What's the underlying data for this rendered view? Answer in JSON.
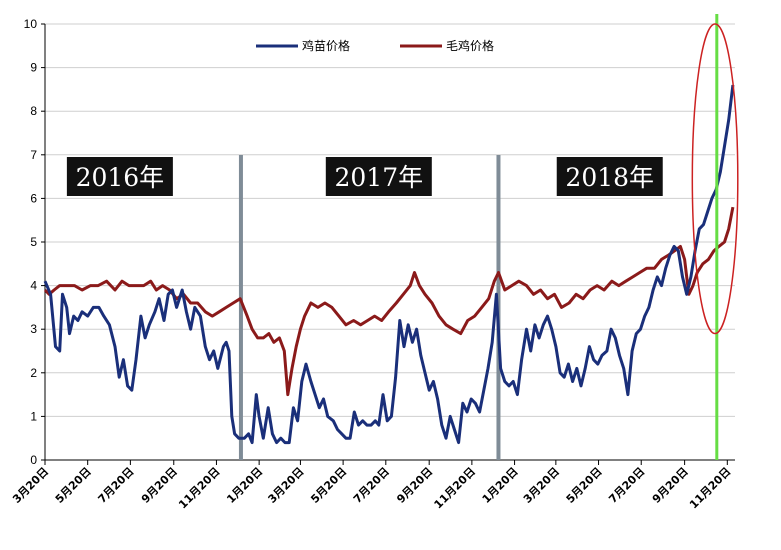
{
  "chart_data": {
    "type": "line",
    "title": "",
    "xlabel": "",
    "ylabel": "",
    "ylim": [
      0,
      10
    ],
    "yticks": [
      "0",
      "1",
      "2",
      "3",
      "4",
      "5",
      "6",
      "7",
      "8",
      "9",
      "10"
    ],
    "x_tick_labels": [
      "3月20日",
      "5月20日",
      "7月20日",
      "9月20日",
      "11月20日",
      "1月20日",
      "3月20日",
      "5月20日",
      "7月20日",
      "9月20日",
      "11月20日",
      "1月20日",
      "3月20日",
      "5月20日",
      "7月20日",
      "9月20日",
      "11月20日"
    ],
    "x_tick_dates": [
      "2016-03-20",
      "2016-05-20",
      "2016-07-20",
      "2016-09-20",
      "2016-11-20",
      "2017-01-20",
      "2017-03-20",
      "2017-05-20",
      "2017-07-20",
      "2017-09-20",
      "2017-11-20",
      "2018-01-20",
      "2018-03-20",
      "2018-05-20",
      "2018-07-20",
      "2018-09-20",
      "2018-11-20"
    ],
    "grid": "horizontal",
    "legend_position": "top-center",
    "year_labels": [
      {
        "text": "2016年",
        "date": "2016-07-05"
      },
      {
        "text": "2017年",
        "date": "2017-07-10"
      },
      {
        "text": "2018年",
        "date": "2018-06-05"
      }
    ],
    "year_dividers": [
      "2016-12-25",
      "2017-12-28"
    ],
    "highlight_line": {
      "date": "2018-11-05",
      "color": "#66dd44"
    },
    "highlight_ellipse": {
      "date_range": [
        "2018-10-01",
        "2018-12-05"
      ],
      "y_range": [
        2.9,
        10
      ],
      "color": "#cc2222"
    },
    "series": [
      {
        "name": "鸡苗价格",
        "color": "#1a2f7a",
        "points": [
          [
            "2016-03-20",
            4.1
          ],
          [
            "2016-03-28",
            3.8
          ],
          [
            "2016-04-04",
            2.6
          ],
          [
            "2016-04-10",
            2.5
          ],
          [
            "2016-04-14",
            3.8
          ],
          [
            "2016-04-20",
            3.5
          ],
          [
            "2016-04-24",
            2.9
          ],
          [
            "2016-04-30",
            3.3
          ],
          [
            "2016-05-06",
            3.2
          ],
          [
            "2016-05-12",
            3.4
          ],
          [
            "2016-05-20",
            3.3
          ],
          [
            "2016-05-28",
            3.5
          ],
          [
            "2016-06-05",
            3.5
          ],
          [
            "2016-06-12",
            3.3
          ],
          [
            "2016-06-20",
            3.1
          ],
          [
            "2016-06-28",
            2.6
          ],
          [
            "2016-07-04",
            1.9
          ],
          [
            "2016-07-10",
            2.3
          ],
          [
            "2016-07-16",
            1.7
          ],
          [
            "2016-07-22",
            1.6
          ],
          [
            "2016-07-28",
            2.3
          ],
          [
            "2016-08-04",
            3.3
          ],
          [
            "2016-08-10",
            2.8
          ],
          [
            "2016-08-16",
            3.1
          ],
          [
            "2016-08-24",
            3.4
          ],
          [
            "2016-08-30",
            3.7
          ],
          [
            "2016-09-06",
            3.2
          ],
          [
            "2016-09-12",
            3.8
          ],
          [
            "2016-09-18",
            3.9
          ],
          [
            "2016-09-24",
            3.5
          ],
          [
            "2016-10-02",
            3.9
          ],
          [
            "2016-10-08",
            3.4
          ],
          [
            "2016-10-14",
            3.0
          ],
          [
            "2016-10-20",
            3.5
          ],
          [
            "2016-10-28",
            3.3
          ],
          [
            "2016-11-04",
            2.6
          ],
          [
            "2016-11-10",
            2.3
          ],
          [
            "2016-11-16",
            2.5
          ],
          [
            "2016-11-22",
            2.1
          ],
          [
            "2016-11-30",
            2.6
          ],
          [
            "2016-12-04",
            2.7
          ],
          [
            "2016-12-08",
            2.5
          ],
          [
            "2016-12-12",
            1.0
          ],
          [
            "2016-12-16",
            0.6
          ],
          [
            "2016-12-22",
            0.5
          ],
          [
            "2016-12-30",
            0.5
          ],
          [
            "2017-01-05",
            0.6
          ],
          [
            "2017-01-10",
            0.4
          ],
          [
            "2017-01-16",
            1.5
          ],
          [
            "2017-01-20",
            1.0
          ],
          [
            "2017-01-26",
            0.5
          ],
          [
            "2017-02-02",
            1.2
          ],
          [
            "2017-02-08",
            0.6
          ],
          [
            "2017-02-14",
            0.4
          ],
          [
            "2017-02-20",
            0.5
          ],
          [
            "2017-02-26",
            0.4
          ],
          [
            "2017-03-04",
            0.4
          ],
          [
            "2017-03-10",
            1.2
          ],
          [
            "2017-03-16",
            0.9
          ],
          [
            "2017-03-22",
            1.8
          ],
          [
            "2017-03-28",
            2.2
          ],
          [
            "2017-04-04",
            1.8
          ],
          [
            "2017-04-10",
            1.5
          ],
          [
            "2017-04-16",
            1.2
          ],
          [
            "2017-04-22",
            1.4
          ],
          [
            "2017-04-28",
            1.0
          ],
          [
            "2017-05-06",
            0.9
          ],
          [
            "2017-05-12",
            0.7
          ],
          [
            "2017-05-18",
            0.6
          ],
          [
            "2017-05-24",
            0.5
          ],
          [
            "2017-05-30",
            0.5
          ],
          [
            "2017-06-05",
            1.1
          ],
          [
            "2017-06-11",
            0.8
          ],
          [
            "2017-06-17",
            0.9
          ],
          [
            "2017-06-23",
            0.8
          ],
          [
            "2017-06-29",
            0.8
          ],
          [
            "2017-07-05",
            0.9
          ],
          [
            "2017-07-10",
            0.8
          ],
          [
            "2017-07-16",
            1.5
          ],
          [
            "2017-07-22",
            0.9
          ],
          [
            "2017-07-28",
            1.0
          ],
          [
            "2017-08-03",
            1.9
          ],
          [
            "2017-08-09",
            3.2
          ],
          [
            "2017-08-15",
            2.6
          ],
          [
            "2017-08-21",
            3.1
          ],
          [
            "2017-08-27",
            2.7
          ],
          [
            "2017-09-02",
            3.0
          ],
          [
            "2017-09-08",
            2.4
          ],
          [
            "2017-09-14",
            2.0
          ],
          [
            "2017-09-20",
            1.6
          ],
          [
            "2017-09-26",
            1.8
          ],
          [
            "2017-10-02",
            1.4
          ],
          [
            "2017-10-08",
            0.8
          ],
          [
            "2017-10-14",
            0.5
          ],
          [
            "2017-10-20",
            1.0
          ],
          [
            "2017-10-26",
            0.7
          ],
          [
            "2017-11-01",
            0.4
          ],
          [
            "2017-11-07",
            1.3
          ],
          [
            "2017-11-13",
            1.1
          ],
          [
            "2017-11-19",
            1.4
          ],
          [
            "2017-11-25",
            1.3
          ],
          [
            "2017-12-01",
            1.1
          ],
          [
            "2017-12-07",
            1.6
          ],
          [
            "2017-12-13",
            2.1
          ],
          [
            "2017-12-19",
            2.7
          ],
          [
            "2017-12-25",
            3.8
          ],
          [
            "2017-12-31",
            2.1
          ],
          [
            "2018-01-06",
            1.8
          ],
          [
            "2018-01-12",
            1.7
          ],
          [
            "2018-01-18",
            1.8
          ],
          [
            "2018-01-24",
            1.5
          ],
          [
            "2018-01-30",
            2.3
          ],
          [
            "2018-02-06",
            3.0
          ],
          [
            "2018-02-12",
            2.5
          ],
          [
            "2018-02-18",
            3.1
          ],
          [
            "2018-02-24",
            2.8
          ],
          [
            "2018-03-02",
            3.1
          ],
          [
            "2018-03-08",
            3.3
          ],
          [
            "2018-03-14",
            3.0
          ],
          [
            "2018-03-20",
            2.6
          ],
          [
            "2018-03-26",
            2.0
          ],
          [
            "2018-04-01",
            1.9
          ],
          [
            "2018-04-07",
            2.2
          ],
          [
            "2018-04-13",
            1.8
          ],
          [
            "2018-04-19",
            2.1
          ],
          [
            "2018-04-25",
            1.7
          ],
          [
            "2018-05-01",
            2.1
          ],
          [
            "2018-05-07",
            2.6
          ],
          [
            "2018-05-13",
            2.3
          ],
          [
            "2018-05-19",
            2.2
          ],
          [
            "2018-05-25",
            2.4
          ],
          [
            "2018-06-01",
            2.5
          ],
          [
            "2018-06-07",
            3.0
          ],
          [
            "2018-06-13",
            2.8
          ],
          [
            "2018-06-19",
            2.4
          ],
          [
            "2018-06-25",
            2.1
          ],
          [
            "2018-07-01",
            1.5
          ],
          [
            "2018-07-07",
            2.5
          ],
          [
            "2018-07-13",
            2.9
          ],
          [
            "2018-07-19",
            3.0
          ],
          [
            "2018-07-25",
            3.3
          ],
          [
            "2018-07-31",
            3.5
          ],
          [
            "2018-08-06",
            3.9
          ],
          [
            "2018-08-12",
            4.2
          ],
          [
            "2018-08-18",
            4.0
          ],
          [
            "2018-08-24",
            4.4
          ],
          [
            "2018-08-30",
            4.7
          ],
          [
            "2018-09-05",
            4.9
          ],
          [
            "2018-09-11",
            4.8
          ],
          [
            "2018-09-17",
            4.2
          ],
          [
            "2018-09-23",
            3.8
          ],
          [
            "2018-09-29",
            4.2
          ],
          [
            "2018-10-05",
            4.8
          ],
          [
            "2018-10-11",
            5.3
          ],
          [
            "2018-10-17",
            5.4
          ],
          [
            "2018-10-23",
            5.7
          ],
          [
            "2018-10-29",
            6.0
          ],
          [
            "2018-11-04",
            6.2
          ],
          [
            "2018-11-10",
            6.6
          ],
          [
            "2018-11-16",
            7.2
          ],
          [
            "2018-11-22",
            7.8
          ],
          [
            "2018-11-28",
            8.6
          ]
        ]
      },
      {
        "name": "毛鸡价格",
        "color": "#8b1a1a",
        "points": [
          [
            "2016-03-20",
            3.9
          ],
          [
            "2016-03-26",
            3.8
          ],
          [
            "2016-04-02",
            3.9
          ],
          [
            "2016-04-10",
            4.0
          ],
          [
            "2016-04-20",
            4.0
          ],
          [
            "2016-05-01",
            4.0
          ],
          [
            "2016-05-12",
            3.9
          ],
          [
            "2016-05-24",
            4.0
          ],
          [
            "2016-06-04",
            4.0
          ],
          [
            "2016-06-16",
            4.1
          ],
          [
            "2016-06-28",
            3.9
          ],
          [
            "2016-07-08",
            4.1
          ],
          [
            "2016-07-18",
            4.0
          ],
          [
            "2016-07-28",
            4.0
          ],
          [
            "2016-08-08",
            4.0
          ],
          [
            "2016-08-18",
            4.1
          ],
          [
            "2016-08-26",
            3.9
          ],
          [
            "2016-09-04",
            4.0
          ],
          [
            "2016-09-14",
            3.9
          ],
          [
            "2016-09-24",
            3.7
          ],
          [
            "2016-10-04",
            3.8
          ],
          [
            "2016-10-14",
            3.6
          ],
          [
            "2016-10-24",
            3.6
          ],
          [
            "2016-11-04",
            3.4
          ],
          [
            "2016-11-14",
            3.3
          ],
          [
            "2016-11-24",
            3.4
          ],
          [
            "2016-12-04",
            3.5
          ],
          [
            "2016-12-14",
            3.6
          ],
          [
            "2016-12-24",
            3.7
          ],
          [
            "2017-01-03",
            3.3
          ],
          [
            "2017-01-10",
            3.0
          ],
          [
            "2017-01-18",
            2.8
          ],
          [
            "2017-01-26",
            2.8
          ],
          [
            "2017-02-03",
            2.9
          ],
          [
            "2017-02-10",
            2.7
          ],
          [
            "2017-02-18",
            2.8
          ],
          [
            "2017-02-25",
            2.5
          ],
          [
            "2017-03-02",
            1.5
          ],
          [
            "2017-03-08",
            2.1
          ],
          [
            "2017-03-14",
            2.6
          ],
          [
            "2017-03-20",
            3.0
          ],
          [
            "2017-03-26",
            3.3
          ],
          [
            "2017-04-04",
            3.6
          ],
          [
            "2017-04-14",
            3.5
          ],
          [
            "2017-04-24",
            3.6
          ],
          [
            "2017-05-04",
            3.5
          ],
          [
            "2017-05-14",
            3.3
          ],
          [
            "2017-05-24",
            3.1
          ],
          [
            "2017-06-04",
            3.2
          ],
          [
            "2017-06-14",
            3.1
          ],
          [
            "2017-06-24",
            3.2
          ],
          [
            "2017-07-04",
            3.3
          ],
          [
            "2017-07-14",
            3.2
          ],
          [
            "2017-07-24",
            3.4
          ],
          [
            "2017-08-04",
            3.6
          ],
          [
            "2017-08-14",
            3.8
          ],
          [
            "2017-08-24",
            4.0
          ],
          [
            "2017-08-30",
            4.3
          ],
          [
            "2017-09-06",
            4.0
          ],
          [
            "2017-09-14",
            3.8
          ],
          [
            "2017-09-24",
            3.6
          ],
          [
            "2017-10-04",
            3.3
          ],
          [
            "2017-10-14",
            3.1
          ],
          [
            "2017-10-24",
            3.0
          ],
          [
            "2017-11-04",
            2.9
          ],
          [
            "2017-11-14",
            3.2
          ],
          [
            "2017-11-24",
            3.3
          ],
          [
            "2017-12-04",
            3.5
          ],
          [
            "2017-12-14",
            3.7
          ],
          [
            "2017-12-22",
            4.1
          ],
          [
            "2017-12-28",
            4.3
          ],
          [
            "2018-01-06",
            3.9
          ],
          [
            "2018-01-16",
            4.0
          ],
          [
            "2018-01-26",
            4.1
          ],
          [
            "2018-02-06",
            4.0
          ],
          [
            "2018-02-16",
            3.8
          ],
          [
            "2018-02-26",
            3.9
          ],
          [
            "2018-03-08",
            3.7
          ],
          [
            "2018-03-18",
            3.8
          ],
          [
            "2018-03-28",
            3.5
          ],
          [
            "2018-04-08",
            3.6
          ],
          [
            "2018-04-18",
            3.8
          ],
          [
            "2018-04-28",
            3.7
          ],
          [
            "2018-05-08",
            3.9
          ],
          [
            "2018-05-18",
            4.0
          ],
          [
            "2018-05-28",
            3.9
          ],
          [
            "2018-06-08",
            4.1
          ],
          [
            "2018-06-18",
            4.0
          ],
          [
            "2018-06-28",
            4.1
          ],
          [
            "2018-07-08",
            4.2
          ],
          [
            "2018-07-18",
            4.3
          ],
          [
            "2018-07-28",
            4.4
          ],
          [
            "2018-08-08",
            4.4
          ],
          [
            "2018-08-18",
            4.6
          ],
          [
            "2018-08-28",
            4.7
          ],
          [
            "2018-09-06",
            4.8
          ],
          [
            "2018-09-14",
            4.9
          ],
          [
            "2018-09-20",
            4.6
          ],
          [
            "2018-09-26",
            3.8
          ],
          [
            "2018-10-02",
            4.0
          ],
          [
            "2018-10-08",
            4.3
          ],
          [
            "2018-10-16",
            4.5
          ],
          [
            "2018-10-24",
            4.6
          ],
          [
            "2018-11-01",
            4.8
          ],
          [
            "2018-11-08",
            4.9
          ],
          [
            "2018-11-16",
            5.0
          ],
          [
            "2018-11-22",
            5.3
          ],
          [
            "2018-11-28",
            5.8
          ]
        ]
      }
    ]
  }
}
